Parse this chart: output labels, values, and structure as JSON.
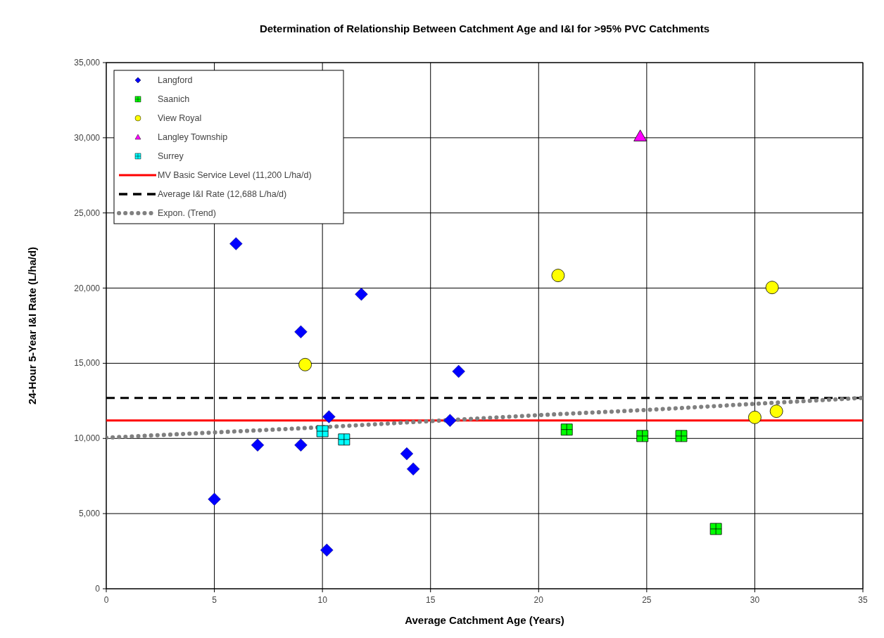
{
  "chart_data": {
    "type": "scatter",
    "title": "Determination of Relationship  Between Catchment Age and I&I for >95% PVC Catchments",
    "xlabel": "Average Catchment Age (Years)",
    "ylabel": "24-Hour 5-Year I&I Rate (L/ha/d)",
    "xlim": [
      0,
      35
    ],
    "xticks": [
      0,
      5,
      10,
      15,
      20,
      25,
      30,
      35
    ],
    "ylim": [
      0,
      35000
    ],
    "yticks": [
      {
        "value": 0,
        "label": "0"
      },
      {
        "value": 5000,
        "label": "5,000"
      },
      {
        "value": 10000,
        "label": "10,000"
      },
      {
        "value": 15000,
        "label": "15,000"
      },
      {
        "value": 20000,
        "label": "20,000"
      },
      {
        "value": 25000,
        "label": "25,000"
      },
      {
        "value": 30000,
        "label": "30,000"
      },
      {
        "value": 35000,
        "label": "35,000"
      }
    ],
    "grid": true,
    "legend": "top left",
    "series": [
      {
        "name": "Langford",
        "color": "#0000ff",
        "marker": "diamond",
        "x": [
          5.0,
          6.0,
          7.0,
          9.0,
          9.0,
          10.3,
          10.2,
          11.8,
          13.9,
          14.2,
          15.9,
          16.3
        ],
        "values": [
          5960,
          22950,
          9560,
          9560,
          17090,
          11440,
          2570,
          19590,
          8980,
          7970,
          11200,
          14460
        ]
      },
      {
        "name": "Saanich",
        "color": "#00ff00",
        "marker": "cross",
        "x": [
          21.3,
          24.8,
          26.6,
          28.2
        ],
        "values": [
          10590,
          10160,
          10160,
          3980
        ]
      },
      {
        "name": "View Royal",
        "color": "#ffff00",
        "marker": "circle",
        "x": [
          9.2,
          20.9,
          30.0,
          30.8,
          31.0
        ],
        "values": [
          14910,
          20840,
          11400,
          20040,
          11810
        ]
      },
      {
        "name": "Langley Township",
        "color": "#ff00ff",
        "marker": "triangle",
        "x": [
          24.7
        ],
        "values": [
          30100
        ]
      },
      {
        "name": "Surrey",
        "color": "#00ffff",
        "marker": "cross",
        "x": [
          10.0,
          11.0
        ],
        "values": [
          10480,
          9930
        ]
      },
      {
        "name": "Expon. (Trend)",
        "type": "line",
        "color": "#808080",
        "line_style": "dotted",
        "marker": "none",
        "x": [
          0,
          5,
          10,
          15,
          20,
          25,
          30,
          35
        ],
        "values": [
          10050,
          10400,
          10750,
          11150,
          11550,
          11900,
          12300,
          12700
        ]
      }
    ],
    "ref_lines": [
      {
        "axis": "y",
        "value": 11200,
        "label": "MV Basic Service Level (11,200 L/ha/d)",
        "color": "#ff0000",
        "line_style": "solid"
      },
      {
        "axis": "y",
        "value": 12688,
        "label": "Average I&I Rate (12,688 L/ha/d)",
        "color": "#000000",
        "line_style": "dashed"
      }
    ]
  }
}
